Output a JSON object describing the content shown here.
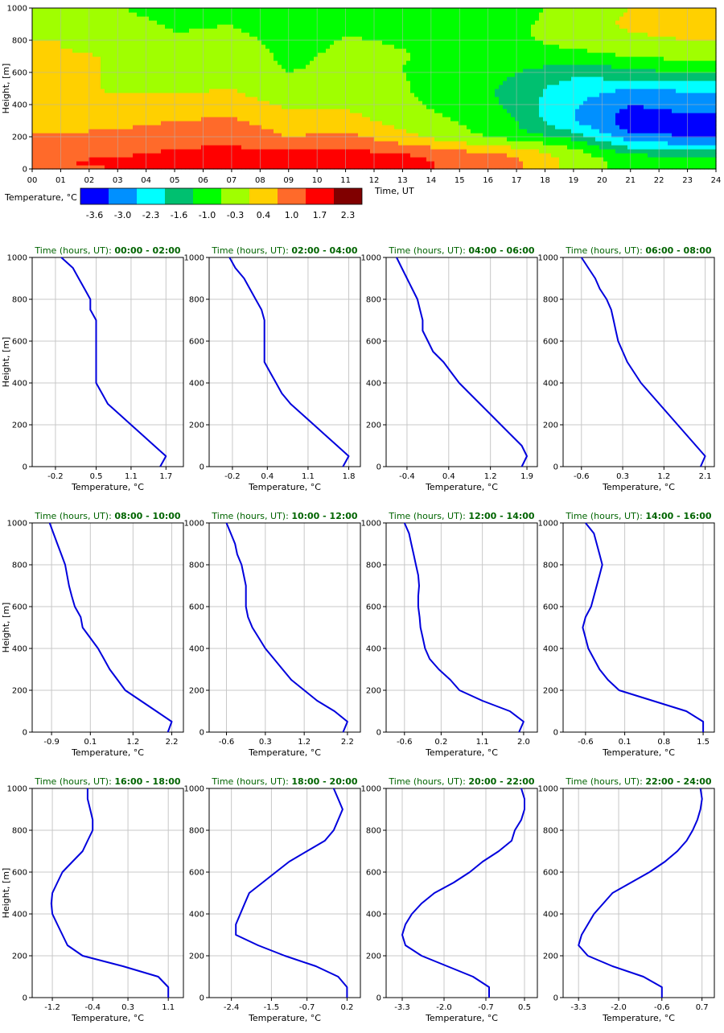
{
  "colors": {
    "profile_line": "#0000dd",
    "panel_title": "#006400",
    "grid": "#c8c8c8",
    "axis": "#000000"
  },
  "chart_data": [
    {
      "type": "heatmap",
      "title": "",
      "xlabel": "Time, UT",
      "ylabel": "Height, [m]",
      "x_ticks": [
        "00",
        "01",
        "02",
        "03",
        "04",
        "05",
        "06",
        "07",
        "08",
        "09",
        "10",
        "11",
        "12",
        "13",
        "14",
        "15",
        "16",
        "17",
        "18",
        "19",
        "20",
        "21",
        "22",
        "23",
        "24"
      ],
      "y_ticks": [
        0,
        200,
        400,
        600,
        800,
        1000
      ],
      "xlim": [
        0,
        24
      ],
      "ylim": [
        0,
        1000
      ],
      "colorbar": {
        "label": "Temperature, °C",
        "tick_labels": [
          "-3.6",
          "-3.0",
          "-2.3",
          "-1.6",
          "-1.0",
          "-0.3",
          "0.4",
          "1.0",
          "1.7",
          "2.3"
        ],
        "colors": [
          "#0000ff",
          "#0090ff",
          "#00ffff",
          "#00c070",
          "#00ff00",
          "#a0ff00",
          "#ffd000",
          "#ff6a2a",
          "#ff0000",
          "#800000"
        ]
      },
      "height_levels": [
        0,
        50,
        100,
        150,
        200,
        250,
        300,
        350,
        400,
        450,
        500,
        550,
        600,
        650,
        700,
        750,
        800,
        850,
        900,
        950,
        1000
      ],
      "time_hours": [
        1,
        3,
        5,
        7,
        9,
        11,
        13,
        15,
        17,
        19,
        21,
        23
      ],
      "values": [
        [
          1.6,
          1.7,
          1.5,
          1.3,
          1.1,
          0.9,
          0.7,
          0.6,
          0.5,
          0.5,
          0.5,
          0.5,
          0.5,
          0.5,
          0.5,
          0.4,
          0.4,
          0.3,
          0.2,
          0.1,
          -0.1
        ],
        [
          1.7,
          1.8,
          1.6,
          1.4,
          1.2,
          1.0,
          0.8,
          0.65,
          0.55,
          0.45,
          0.35,
          0.35,
          0.35,
          0.35,
          0.35,
          0.3,
          0.2,
          0.1,
          0.0,
          -0.15,
          -0.25
        ],
        [
          1.8,
          1.9,
          1.8,
          1.6,
          1.4,
          1.2,
          1.0,
          0.8,
          0.6,
          0.45,
          0.3,
          0.1,
          0.0,
          -0.1,
          -0.1,
          -0.15,
          -0.2,
          -0.3,
          -0.4,
          -0.5,
          -0.6
        ],
        [
          2.0,
          2.1,
          1.9,
          1.7,
          1.5,
          1.3,
          1.1,
          0.9,
          0.7,
          0.55,
          0.4,
          0.3,
          0.2,
          0.15,
          0.1,
          0.05,
          -0.05,
          -0.2,
          -0.3,
          -0.45,
          -0.6
        ],
        [
          2.1,
          2.2,
          1.8,
          1.4,
          1.0,
          0.8,
          0.6,
          0.45,
          0.3,
          0.1,
          -0.1,
          -0.15,
          -0.3,
          -0.38,
          -0.45,
          -0.5,
          -0.55,
          -0.65,
          -0.75,
          -0.85,
          -0.95
        ],
        [
          2.1,
          2.2,
          1.9,
          1.5,
          1.2,
          0.9,
          0.7,
          0.5,
          0.3,
          0.15,
          0.0,
          -0.1,
          -0.15,
          -0.15,
          -0.15,
          -0.2,
          -0.25,
          -0.35,
          -0.4,
          -0.5,
          -0.6
        ],
        [
          1.9,
          2.0,
          1.7,
          1.1,
          0.6,
          0.4,
          0.15,
          -0.05,
          -0.15,
          -0.2,
          -0.25,
          -0.27,
          -0.3,
          -0.3,
          -0.28,
          -0.3,
          -0.35,
          -0.4,
          -0.45,
          -0.5,
          -0.6
        ],
        [
          1.5,
          1.5,
          1.2,
          0.6,
          0.0,
          -0.2,
          -0.35,
          -0.45,
          -0.55,
          -0.6,
          -0.65,
          -0.6,
          -0.5,
          -0.45,
          -0.4,
          -0.35,
          -0.3,
          -0.35,
          -0.4,
          -0.45,
          -0.6
        ],
        [
          1.1,
          1.1,
          0.9,
          0.2,
          -0.6,
          -0.9,
          -1.0,
          -1.1,
          -1.2,
          -1.22,
          -1.2,
          -1.1,
          -1.0,
          -0.8,
          -0.6,
          -0.5,
          -0.4,
          -0.4,
          -0.45,
          -0.5,
          -0.5
        ],
        [
          0.2,
          0.2,
          0.0,
          -0.5,
          -1.2,
          -1.8,
          -2.3,
          -2.3,
          -2.2,
          -2.1,
          -2.0,
          -1.7,
          -1.4,
          -1.1,
          -0.7,
          -0.3,
          -0.1,
          0.0,
          0.1,
          0.0,
          -0.1
        ],
        [
          -0.6,
          -0.6,
          -1.1,
          -1.9,
          -2.7,
          -3.2,
          -3.3,
          -3.2,
          -3.0,
          -2.7,
          -2.3,
          -1.7,
          -1.2,
          -0.8,
          -0.3,
          0.1,
          0.2,
          0.4,
          0.5,
          0.5,
          0.4
        ],
        [
          -0.6,
          -0.6,
          -1.2,
          -2.2,
          -3.0,
          -3.3,
          -3.2,
          -3.0,
          -2.8,
          -2.5,
          -2.2,
          -1.6,
          -1.0,
          -0.5,
          -0.1,
          0.2,
          0.4,
          0.55,
          0.65,
          0.7,
          0.65
        ]
      ]
    },
    {
      "type": "line",
      "title_prefix": "Time (hours, UT): ",
      "title_range": "00:00 - 02:00",
      "xlabel": "Temperature, °C",
      "ylabel": "Height, [m]",
      "xlim": [
        -0.6,
        2.0
      ],
      "x_tick_labels": [
        "-0.2",
        "0.5",
        "1.1",
        "1.7"
      ],
      "y_ticks": [
        0,
        200,
        400,
        600,
        800,
        1000
      ],
      "x": [
        1.6,
        1.7,
        1.5,
        1.3,
        1.1,
        0.9,
        0.7,
        0.6,
        0.5,
        0.5,
        0.5,
        0.5,
        0.5,
        0.5,
        0.5,
        0.4,
        0.4,
        0.3,
        0.2,
        0.1,
        -0.1
      ],
      "y": [
        0,
        50,
        100,
        150,
        200,
        250,
        300,
        350,
        400,
        450,
        500,
        550,
        600,
        650,
        700,
        750,
        800,
        850,
        900,
        950,
        1000
      ]
    },
    {
      "type": "line",
      "title_prefix": "Time (hours, UT): ",
      "title_range": "02:00 - 04:00",
      "xlabel": "Temperature, °C",
      "ylabel": "Height, [m]",
      "xlim": [
        -0.6,
        2.0
      ],
      "x_tick_labels": [
        "-0.2",
        "0.4",
        "1.1",
        "1.8"
      ],
      "y_ticks": [
        0,
        200,
        400,
        600,
        800,
        1000
      ],
      "x": [
        1.7,
        1.8,
        1.6,
        1.4,
        1.2,
        1.0,
        0.8,
        0.65,
        0.55,
        0.45,
        0.35,
        0.35,
        0.35,
        0.35,
        0.35,
        0.3,
        0.2,
        0.1,
        0.0,
        -0.15,
        -0.25
      ],
      "y": [
        0,
        50,
        100,
        150,
        200,
        250,
        300,
        350,
        400,
        450,
        500,
        550,
        600,
        650,
        700,
        750,
        800,
        850,
        900,
        950,
        1000
      ]
    },
    {
      "type": "line",
      "title_prefix": "Time (hours, UT): ",
      "title_range": "04:00 - 06:00",
      "xlabel": "Temperature, °C",
      "ylabel": "Height, [m]",
      "xlim": [
        -0.8,
        2.1
      ],
      "x_tick_labels": [
        "-0.4",
        "0.4",
        "1.2",
        "1.9"
      ],
      "y_ticks": [
        0,
        200,
        400,
        600,
        800,
        1000
      ],
      "x": [
        1.8,
        1.9,
        1.8,
        1.6,
        1.4,
        1.2,
        1.0,
        0.8,
        0.6,
        0.45,
        0.3,
        0.1,
        0.0,
        -0.1,
        -0.1,
        -0.15,
        -0.2,
        -0.3,
        -0.4,
        -0.5,
        -0.6
      ],
      "y": [
        0,
        50,
        100,
        150,
        200,
        250,
        300,
        350,
        400,
        450,
        500,
        550,
        600,
        650,
        700,
        750,
        800,
        850,
        900,
        950,
        1000
      ]
    },
    {
      "type": "line",
      "title_prefix": "Time (hours, UT): ",
      "title_range": "06:00 - 08:00",
      "xlabel": "Temperature, °C",
      "ylabel": "Height, [m]",
      "xlim": [
        -1.0,
        2.3
      ],
      "x_tick_labels": [
        "-0.6",
        "0.3",
        "1.2",
        "2.1"
      ],
      "y_ticks": [
        0,
        200,
        400,
        600,
        800,
        1000
      ],
      "x": [
        2.0,
        2.1,
        1.9,
        1.7,
        1.5,
        1.3,
        1.1,
        0.9,
        0.7,
        0.55,
        0.4,
        0.3,
        0.2,
        0.15,
        0.1,
        0.05,
        -0.05,
        -0.2,
        -0.3,
        -0.45,
        -0.6
      ],
      "y": [
        0,
        50,
        100,
        150,
        200,
        250,
        300,
        350,
        400,
        450,
        500,
        550,
        600,
        650,
        700,
        750,
        800,
        850,
        900,
        950,
        1000
      ]
    },
    {
      "type": "line",
      "title_prefix": "Time (hours, UT): ",
      "title_range": "08:00 - 10:00",
      "xlabel": "Temperature, °C",
      "ylabel": "Height, [m]",
      "xlim": [
        -1.4,
        2.5
      ],
      "x_tick_labels": [
        "-0.9",
        "0.1",
        "1.2",
        "2.2"
      ],
      "y_ticks": [
        0,
        200,
        400,
        600,
        800,
        1000
      ],
      "x": [
        2.1,
        2.2,
        1.8,
        1.4,
        1.0,
        0.8,
        0.6,
        0.45,
        0.3,
        0.1,
        -0.1,
        -0.15,
        -0.3,
        -0.38,
        -0.45,
        -0.5,
        -0.55,
        -0.65,
        -0.75,
        -0.85,
        -0.95
      ],
      "y": [
        0,
        50,
        100,
        150,
        200,
        250,
        300,
        350,
        400,
        450,
        500,
        550,
        600,
        650,
        700,
        750,
        800,
        850,
        900,
        950,
        1000
      ]
    },
    {
      "type": "line",
      "title_prefix": "Time (hours, UT): ",
      "title_range": "10:00 - 12:00",
      "xlabel": "Temperature, °C",
      "ylabel": "Height, [m]",
      "xlim": [
        -1.0,
        2.5
      ],
      "x_tick_labels": [
        "-0.6",
        "0.3",
        "1.2",
        "2.2"
      ],
      "y_ticks": [
        0,
        200,
        400,
        600,
        800,
        1000
      ],
      "x": [
        2.1,
        2.2,
        1.9,
        1.5,
        1.2,
        0.9,
        0.7,
        0.5,
        0.3,
        0.15,
        0.0,
        -0.1,
        -0.15,
        -0.15,
        -0.15,
        -0.2,
        -0.25,
        -0.35,
        -0.4,
        -0.5,
        -0.6
      ],
      "y": [
        0,
        50,
        100,
        150,
        200,
        250,
        300,
        350,
        400,
        450,
        500,
        550,
        600,
        650,
        700,
        750,
        800,
        850,
        900,
        950,
        1000
      ]
    },
    {
      "type": "line",
      "title_prefix": "Time (hours, UT): ",
      "title_range": "12:00 - 14:00",
      "xlabel": "Temperature, °C",
      "ylabel": "Height, [m]",
      "xlim": [
        -1.0,
        2.3
      ],
      "x_tick_labels": [
        "-0.6",
        "0.2",
        "1.1",
        "2.0"
      ],
      "y_ticks": [
        0,
        200,
        400,
        600,
        800,
        1000
      ],
      "x": [
        1.9,
        2.0,
        1.7,
        1.1,
        0.6,
        0.4,
        0.15,
        -0.05,
        -0.15,
        -0.2,
        -0.25,
        -0.27,
        -0.3,
        -0.3,
        -0.28,
        -0.3,
        -0.35,
        -0.4,
        -0.45,
        -0.5,
        -0.6
      ],
      "y": [
        0,
        50,
        100,
        150,
        200,
        250,
        300,
        350,
        400,
        450,
        500,
        550,
        600,
        650,
        700,
        750,
        800,
        850,
        900,
        950,
        1000
      ]
    },
    {
      "type": "line",
      "title_prefix": "Time (hours, UT): ",
      "title_range": "14:00 - 16:00",
      "xlabel": "Temperature, °C",
      "ylabel": "Height, [m]",
      "xlim": [
        -1.0,
        1.7
      ],
      "x_tick_labels": [
        "-0.6",
        "0.1",
        "0.8",
        "1.5"
      ],
      "y_ticks": [
        0,
        200,
        400,
        600,
        800,
        1000
      ],
      "x": [
        1.5,
        1.5,
        1.2,
        0.6,
        0.0,
        -0.2,
        -0.35,
        -0.45,
        -0.55,
        -0.6,
        -0.65,
        -0.6,
        -0.5,
        -0.45,
        -0.4,
        -0.35,
        -0.3,
        -0.35,
        -0.4,
        -0.45,
        -0.6
      ],
      "y": [
        0,
        50,
        100,
        150,
        200,
        250,
        300,
        350,
        400,
        450,
        500,
        550,
        600,
        650,
        700,
        750,
        800,
        850,
        900,
        950,
        1000
      ]
    },
    {
      "type": "line",
      "title_prefix": "Time (hours, UT): ",
      "title_range": "16:00 - 18:00",
      "xlabel": "Temperature, °C",
      "ylabel": "Height, [m]",
      "xlim": [
        -1.6,
        1.4
      ],
      "x_tick_labels": [
        "-1.2",
        "-0.4",
        "0.3",
        "1.1"
      ],
      "y_ticks": [
        0,
        200,
        400,
        600,
        800,
        1000
      ],
      "x": [
        1.1,
        1.1,
        0.9,
        0.2,
        -0.6,
        -0.9,
        -1.0,
        -1.1,
        -1.2,
        -1.22,
        -1.2,
        -1.1,
        -1.0,
        -0.8,
        -0.6,
        -0.5,
        -0.4,
        -0.4,
        -0.45,
        -0.5,
        -0.5
      ],
      "y": [
        0,
        50,
        100,
        150,
        200,
        250,
        300,
        350,
        400,
        450,
        500,
        550,
        600,
        650,
        700,
        750,
        800,
        850,
        900,
        950,
        1000
      ]
    },
    {
      "type": "line",
      "title_prefix": "Time (hours, UT): ",
      "title_range": "18:00 - 20:00",
      "xlabel": "Temperature, °C",
      "ylabel": "Height, [m]",
      "xlim": [
        -2.9,
        0.5
      ],
      "x_tick_labels": [
        "-2.4",
        "-1.5",
        "-0.7",
        "0.2"
      ],
      "y_ticks": [
        0,
        200,
        400,
        600,
        800,
        1000
      ],
      "x": [
        0.2,
        0.2,
        0.0,
        -0.5,
        -1.2,
        -1.8,
        -2.3,
        -2.3,
        -2.2,
        -2.1,
        -2.0,
        -1.7,
        -1.4,
        -1.1,
        -0.7,
        -0.3,
        -0.1,
        0.0,
        0.1,
        0.0,
        -0.1
      ],
      "y": [
        0,
        50,
        100,
        150,
        200,
        250,
        300,
        350,
        400,
        450,
        500,
        550,
        600,
        650,
        700,
        750,
        800,
        850,
        900,
        950,
        1000
      ]
    },
    {
      "type": "line",
      "title_prefix": "Time (hours, UT): ",
      "title_range": "20:00 - 22:00",
      "xlabel": "Temperature, °C",
      "ylabel": "Height, [m]",
      "xlim": [
        -3.8,
        0.9
      ],
      "x_tick_labels": [
        "-3.3",
        "-2.0",
        "-0.7",
        "0.5"
      ],
      "y_ticks": [
        0,
        200,
        400,
        600,
        800,
        1000
      ],
      "x": [
        -0.6,
        -0.6,
        -1.1,
        -1.9,
        -2.7,
        -3.2,
        -3.3,
        -3.2,
        -3.0,
        -2.7,
        -2.3,
        -1.7,
        -1.2,
        -0.8,
        -0.3,
        0.1,
        0.2,
        0.4,
        0.5,
        0.5,
        0.4
      ],
      "y": [
        0,
        50,
        100,
        150,
        200,
        250,
        300,
        350,
        400,
        450,
        500,
        550,
        600,
        650,
        700,
        750,
        800,
        850,
        900,
        950,
        1000
      ]
    },
    {
      "type": "line",
      "title_prefix": "Time (hours, UT): ",
      "title_range": "22:00 - 24:00",
      "xlabel": "Temperature, °C",
      "ylabel": "Height, [m]",
      "xlim": [
        -3.8,
        1.1
      ],
      "x_tick_labels": [
        "-3.3",
        "-2.0",
        "-0.6",
        "0.7"
      ],
      "y_ticks": [
        0,
        200,
        400,
        600,
        800,
        1000
      ],
      "x": [
        -0.6,
        -0.6,
        -1.2,
        -2.2,
        -3.0,
        -3.3,
        -3.2,
        -3.0,
        -2.8,
        -2.5,
        -2.2,
        -1.6,
        -1.0,
        -0.5,
        -0.1,
        0.2,
        0.4,
        0.55,
        0.65,
        0.7,
        0.65
      ],
      "y": [
        0,
        50,
        100,
        150,
        200,
        250,
        300,
        350,
        400,
        450,
        500,
        550,
        600,
        650,
        700,
        750,
        800,
        850,
        900,
        950,
        1000
      ]
    }
  ]
}
